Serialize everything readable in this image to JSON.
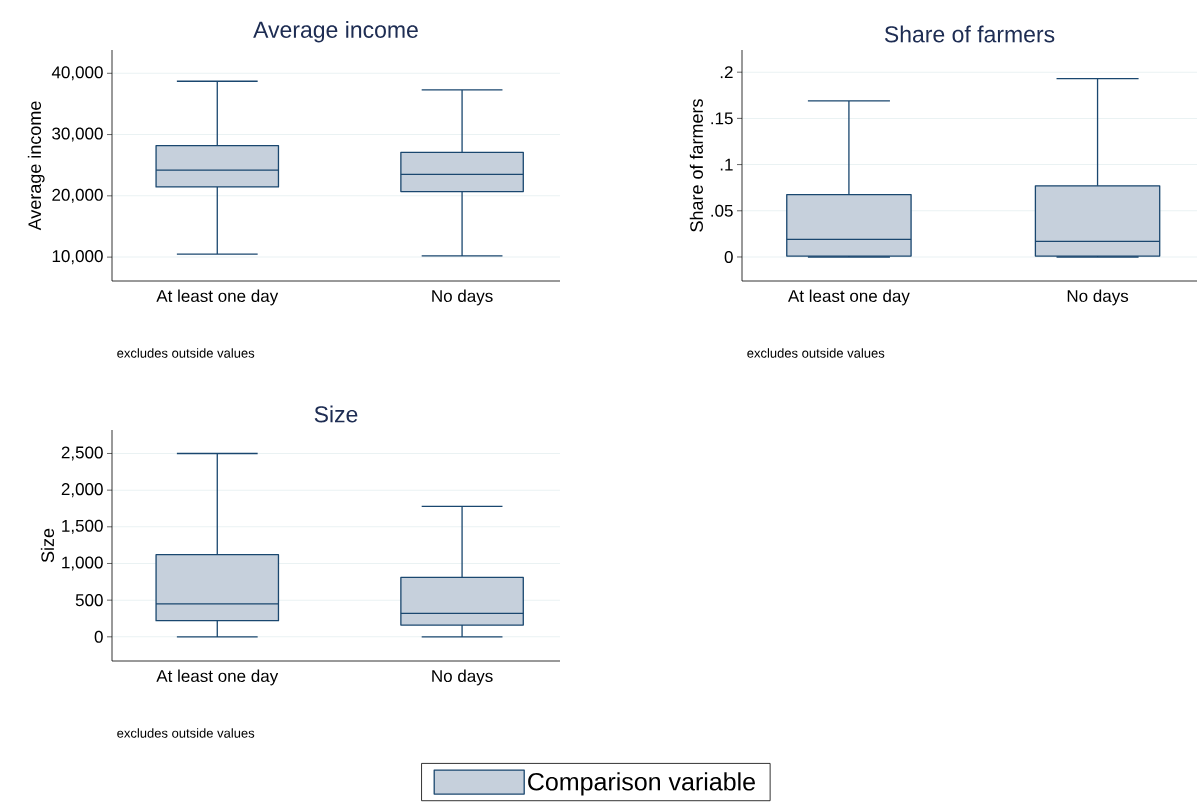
{
  "chart_data": [
    {
      "type": "box",
      "title": "Average income",
      "ylabel": "Average income",
      "categories": [
        "At least one day",
        "No days"
      ],
      "ylim": [
        6100,
        43800
      ],
      "yticks": [
        {
          "value": 10000,
          "label": "10,000"
        },
        {
          "value": 20000,
          "label": "20,000"
        },
        {
          "value": 30000,
          "label": "30,000"
        },
        {
          "value": 40000,
          "label": "40,000"
        }
      ],
      "grid": "y",
      "annotations": [
        "excludes outside values"
      ],
      "series": [
        {
          "color": "#c6d0dc",
          "boxes": [
            {
              "low": 10500,
              "q1": 21450,
              "median": 24200,
              "q3": 28200,
              "high": 38700
            },
            {
              "low": 10200,
              "q1": 20700,
              "median": 23500,
              "q3": 27100,
              "high": 37300
            }
          ]
        }
      ]
    },
    {
      "type": "box",
      "title": "Share of farmers",
      "ylabel": "Share of farmers",
      "categories": [
        "At least one day",
        "No days"
      ],
      "ylim": [
        -0.026,
        0.224
      ],
      "yticks": [
        0,
        {
          "value": 0.05,
          "label": ".05"
        },
        {
          "value": 0.1,
          "label": ".1"
        },
        {
          "value": 0.15,
          "label": ".15"
        },
        {
          "value": 0.2,
          "label": ".2"
        }
      ],
      "grid": "y",
      "annotations": [
        "excludes outside values"
      ],
      "series": [
        {
          "color": "#c6d0dc",
          "boxes": [
            {
              "low": 0,
              "q1": 0.001,
              "median": 0.019,
              "q3": 0.0675,
              "high": 0.169
            },
            {
              "low": 0,
              "q1": 0.001,
              "median": 0.017,
              "q3": 0.077,
              "high": 0.193
            }
          ]
        }
      ]
    },
    {
      "type": "box",
      "title": "Size",
      "ylabel": "Size",
      "categories": [
        "At least one day",
        "No days"
      ],
      "ylim": [
        -330,
        2820
      ],
      "yticks": [
        0,
        500,
        {
          "value": 1000,
          "label": "1,000"
        },
        {
          "value": 1500,
          "label": "1,500"
        },
        {
          "value": 2000,
          "label": "2,000"
        },
        {
          "value": 2500,
          "label": "2,500"
        }
      ],
      "grid": "y",
      "legend": "bottom",
      "annotations": [
        "excludes outside values"
      ],
      "series": [
        {
          "name": "Comparison variable",
          "color": "#c6d0dc",
          "boxes": [
            {
              "low": 0,
              "q1": 220,
              "median": 450,
              "q3": 1120,
              "high": 2500
            },
            {
              "low": 0,
              "q1": 160,
              "median": 320,
              "q3": 810,
              "high": 1780
            }
          ]
        }
      ]
    }
  ]
}
